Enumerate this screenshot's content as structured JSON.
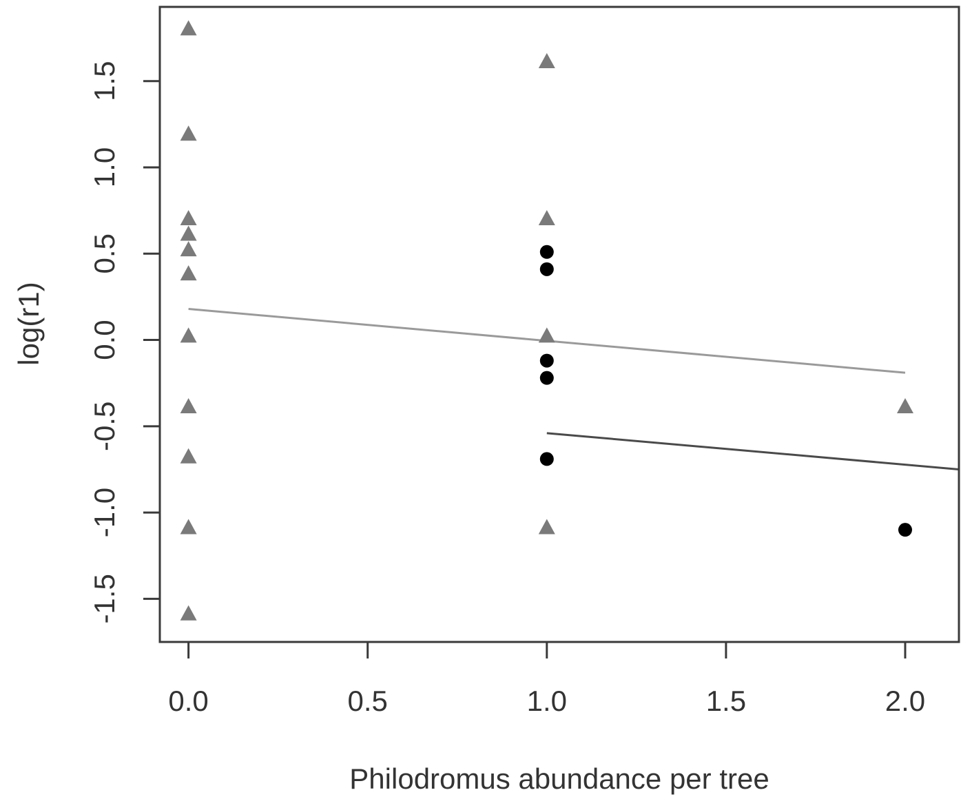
{
  "chart_data": {
    "type": "scatter",
    "title": "",
    "xlabel": "Philodromus abundance per tree",
    "ylabel": "log(r1)",
    "xlim": [
      -0.08,
      2.15
    ],
    "ylim": [
      -1.75,
      1.93
    ],
    "xticks": [
      0,
      0.5,
      1,
      1.5,
      2
    ],
    "xtick_labels": [
      "0.0",
      "0.5",
      "1.0",
      "1.5",
      "2.0"
    ],
    "yticks": [
      -1.5,
      -1,
      -0.5,
      0,
      0.5,
      1,
      1.5
    ],
    "ytick_labels": [
      "-1.5",
      "-1.0",
      "-0.5",
      "0.0",
      "0.5",
      "1.0",
      "1.5"
    ],
    "grid": false,
    "legend": "none",
    "series": [
      {
        "marker": "triangle",
        "color": "#7a7a7a",
        "points": [
          {
            "x": 0,
            "y": 1.8
          },
          {
            "x": 0,
            "y": 1.19
          },
          {
            "x": 0,
            "y": 0.7
          },
          {
            "x": 0,
            "y": 0.61
          },
          {
            "x": 0,
            "y": 0.52
          },
          {
            "x": 0,
            "y": 0.38
          },
          {
            "x": 0,
            "y": 0.02
          },
          {
            "x": 0,
            "y": -0.39
          },
          {
            "x": 0,
            "y": -0.68
          },
          {
            "x": 0,
            "y": -1.09
          },
          {
            "x": 0,
            "y": -1.59
          },
          {
            "x": 1,
            "y": 1.61
          },
          {
            "x": 1,
            "y": 0.7
          },
          {
            "x": 1,
            "y": 0.02
          },
          {
            "x": 1,
            "y": -1.09
          },
          {
            "x": 2,
            "y": -0.39
          }
        ]
      },
      {
        "marker": "circle",
        "color": "#000000",
        "points": [
          {
            "x": 1,
            "y": 0.51
          },
          {
            "x": 1,
            "y": 0.41
          },
          {
            "x": 1,
            "y": -0.12
          },
          {
            "x": 1,
            "y": -0.22
          },
          {
            "x": 1,
            "y": -0.69
          },
          {
            "x": 2,
            "y": -1.1
          }
        ]
      }
    ],
    "fit_lines": [
      {
        "color": "#9a9a9a",
        "x": [
          0,
          2
        ],
        "y": [
          0.18,
          -0.19
        ]
      },
      {
        "color": "#4a4a4a",
        "x": [
          1,
          2.15
        ],
        "y": [
          -0.54,
          -0.75
        ]
      }
    ]
  }
}
